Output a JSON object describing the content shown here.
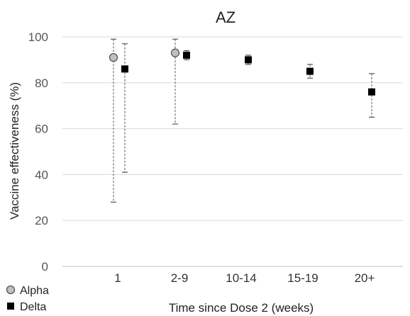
{
  "chart_data": {
    "type": "scatter",
    "title": "AZ",
    "xlabel": "Time since Dose 2 (weeks)",
    "ylabel": "Vaccine effectiveness (%)",
    "categories": [
      "1",
      "2-9",
      "10-14",
      "15-19",
      "20+"
    ],
    "ylim": [
      0,
      100
    ],
    "yticks": [
      0,
      20,
      40,
      60,
      80,
      100
    ],
    "grid": true,
    "legend_position": "bottom-left",
    "series": [
      {
        "name": "Alpha",
        "marker": "circle",
        "color": "#c0c0c0",
        "points": [
          {
            "category": "1",
            "value": 91,
            "lower": 28,
            "upper": 99
          },
          {
            "category": "2-9",
            "value": 93,
            "lower": 62,
            "upper": 99
          }
        ]
      },
      {
        "name": "Delta",
        "marker": "square",
        "color": "#000000",
        "points": [
          {
            "category": "1",
            "value": 86,
            "lower": 41,
            "upper": 97
          },
          {
            "category": "2-9",
            "value": 92,
            "lower": 90,
            "upper": 94
          },
          {
            "category": "10-14",
            "value": 90,
            "lower": 88,
            "upper": 92
          },
          {
            "category": "15-19",
            "value": 85,
            "lower": 82,
            "upper": 88
          },
          {
            "category": "20+",
            "value": 76,
            "lower": 65,
            "upper": 84
          }
        ]
      }
    ]
  }
}
